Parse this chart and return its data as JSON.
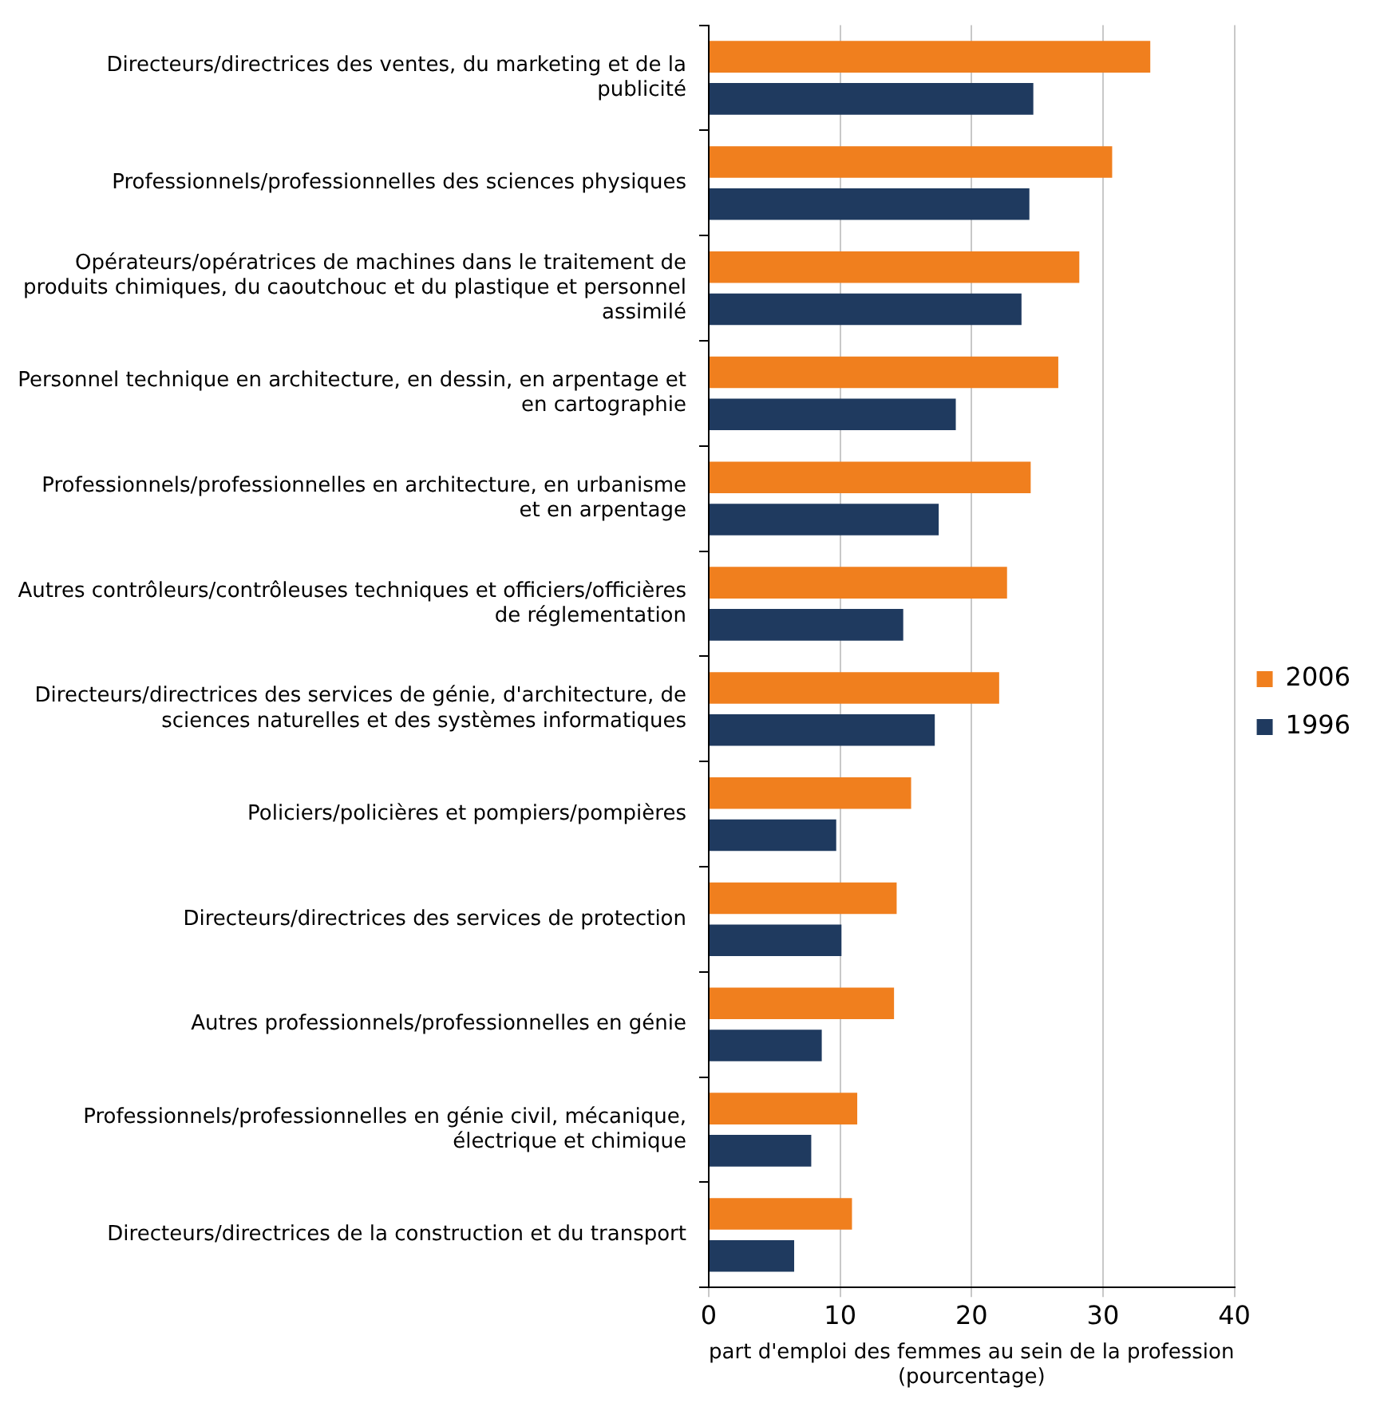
{
  "chart_data": {
    "type": "bar",
    "orientation": "horizontal",
    "categories": [
      "Directeurs/directrices des ventes, du marketing et de la publicité",
      "Professionnels/professionnelles des sciences physiques",
      "Opérateurs/opératrices de machines dans le traitement de produits chimiques, du caoutchouc et du plastique et personnel assimilé",
      "Personnel technique en architecture, en dessin, en arpentage et en cartographie",
      "Professionnels/professionnelles en architecture, en urbanisme et en arpentage",
      "Autres contrôleurs/contrôleuses techniques et officiers/officières de réglementation",
      "Directeurs/directrices des services de génie, d'architecture, de sciences naturelles et des systèmes informatiques",
      "Policiers/policières et pompiers/pompières",
      "Directeurs/directrices des services de protection",
      "Autres professionnels/professionnelles en génie",
      "Professionnels/professionnelles en génie civil, mécanique, électrique et chimique",
      "Directeurs/directrices de la construction et du transport"
    ],
    "series": [
      {
        "name": "2006",
        "color": "#f07f1e",
        "values": [
          33.6,
          30.7,
          28.2,
          26.6,
          24.5,
          22.7,
          22.1,
          15.4,
          14.3,
          14.1,
          11.3,
          10.9
        ]
      },
      {
        "name": "1996",
        "color": "#1f3a5f",
        "values": [
          24.7,
          24.4,
          23.8,
          18.8,
          17.5,
          14.8,
          17.2,
          9.7,
          10.1,
          8.6,
          7.8,
          6.5
        ]
      }
    ],
    "xlim": [
      0,
      40
    ],
    "xticks": [
      0,
      10,
      20,
      30,
      40
    ],
    "xlabel": "part d'emploi des femmes au sein de la profession (pourcentage)",
    "grid": "x",
    "legend": "right"
  }
}
